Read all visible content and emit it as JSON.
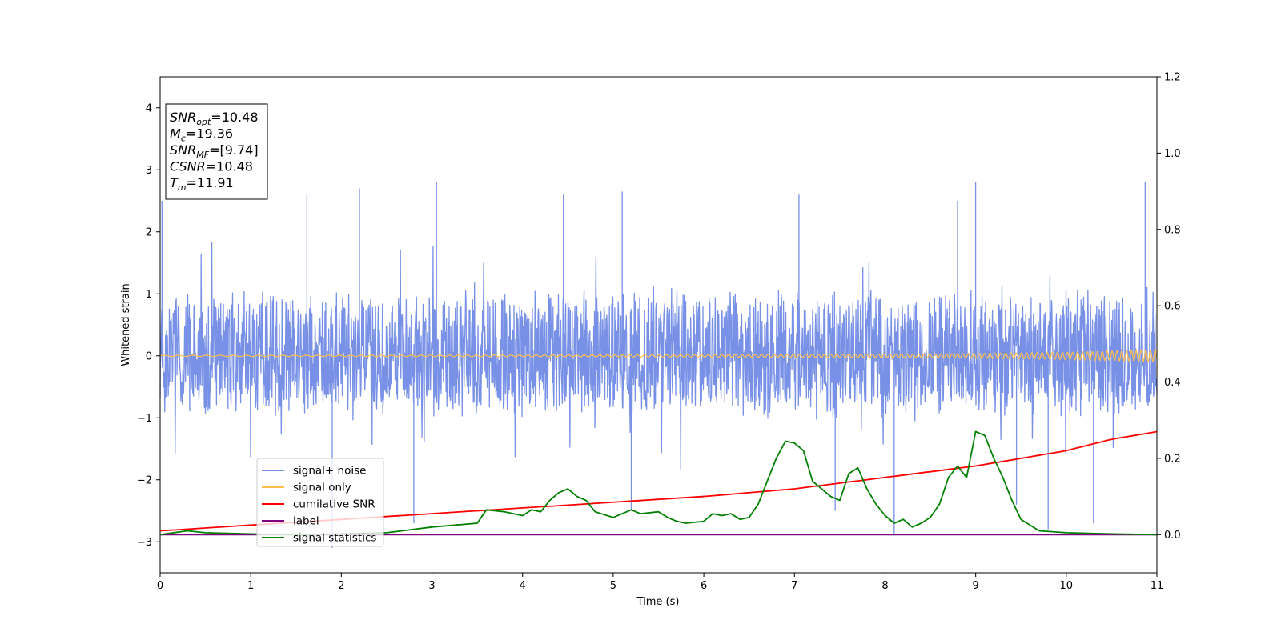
{
  "chart_data": {
    "type": "line",
    "xlabel": "Time (s)",
    "ylabel": "Whitened strain",
    "xlim": [
      0,
      11
    ],
    "ylim": [
      -3.5,
      4.5
    ],
    "y2lim": [
      -0.1,
      1.2
    ],
    "x_ticks": [
      "0",
      "1",
      "2",
      "3",
      "4",
      "5",
      "6",
      "7",
      "8",
      "9",
      "10",
      "11"
    ],
    "y_ticks": [
      "−3",
      "−2",
      "−1",
      "0",
      "1",
      "2",
      "3",
      "4"
    ],
    "y2_ticks": [
      "0.0",
      "0.2",
      "0.4",
      "0.6",
      "0.8",
      "1.0",
      "1.2"
    ],
    "grid": false,
    "legend_position": "lower-left",
    "annotation": [
      {
        "base": "SNR",
        "sub": "opt",
        "value": "=10.48"
      },
      {
        "base": "M",
        "sub": "c",
        "value": "=19.36"
      },
      {
        "base": "SNR",
        "sub": "MF",
        "value": "=[9.74]"
      },
      {
        "base": "CSNR",
        "sub": "",
        "value": "=10.48"
      },
      {
        "base": "T",
        "sub": "m",
        "value": "=11.91"
      }
    ],
    "series": [
      {
        "name": "signal+ noise",
        "color": "#7891e6",
        "axis": "left",
        "noise_band": [
          -1.0,
          1.1
        ],
        "peaks_x": [
          0.02,
          1.62,
          2.2,
          3.05,
          4.45,
          5.1,
          7.05,
          8.8,
          9.0,
          10.87
        ],
        "peaks_y": [
          2.5,
          2.6,
          2.7,
          2.8,
          2.6,
          2.65,
          2.6,
          2.5,
          2.8,
          2.8
        ],
        "troughs_x": [
          1.9,
          2.8,
          5.2,
          7.45,
          8.1,
          9.45,
          9.8,
          10.3
        ],
        "troughs_y": [
          -3.1,
          -2.7,
          -2.5,
          -2.5,
          -2.9,
          -2.4,
          -2.8,
          -2.7
        ]
      },
      {
        "name": "signal only",
        "color": "#ffbf4f",
        "axis": "left",
        "x": [
          0,
          2,
          4,
          6,
          8,
          9,
          10,
          10.5,
          11
        ],
        "amplitude": [
          0.01,
          0.012,
          0.015,
          0.02,
          0.03,
          0.04,
          0.06,
          0.08,
          0.1
        ]
      },
      {
        "name": "cumilative SNR",
        "color": "#ff0000",
        "axis": "right",
        "x": [
          0,
          1,
          2,
          3,
          4,
          5,
          6,
          7,
          8,
          9,
          10,
          10.5,
          11
        ],
        "y": [
          0.01,
          0.025,
          0.04,
          0.055,
          0.07,
          0.085,
          0.1,
          0.12,
          0.15,
          0.18,
          0.22,
          0.25,
          0.27
        ]
      },
      {
        "name": "label",
        "color": "#800080",
        "axis": "right",
        "x": [
          0,
          11
        ],
        "y": [
          0.0,
          0.0
        ]
      },
      {
        "name": "signal statistics",
        "color": "#008000",
        "axis": "right",
        "x": [
          0,
          0.3,
          0.5,
          1.0,
          1.5,
          2.0,
          2.5,
          3.0,
          3.5,
          3.6,
          3.8,
          4.0,
          4.1,
          4.2,
          4.3,
          4.4,
          4.5,
          4.6,
          4.7,
          4.8,
          5.0,
          5.2,
          5.3,
          5.5,
          5.6,
          5.7,
          5.8,
          6.0,
          6.1,
          6.2,
          6.3,
          6.4,
          6.5,
          6.6,
          6.7,
          6.8,
          6.9,
          7.0,
          7.1,
          7.2,
          7.4,
          7.5,
          7.6,
          7.7,
          7.8,
          7.9,
          8.0,
          8.1,
          8.2,
          8.3,
          8.4,
          8.5,
          8.6,
          8.7,
          8.8,
          8.9,
          9.0,
          9.1,
          9.2,
          9.3,
          9.4,
          9.5,
          9.7,
          10.0,
          10.5,
          11.0
        ],
        "y": [
          0.0,
          0.01,
          0.005,
          0.002,
          0.0,
          0.002,
          0.005,
          0.02,
          0.03,
          0.065,
          0.06,
          0.05,
          0.065,
          0.06,
          0.09,
          0.11,
          0.12,
          0.1,
          0.09,
          0.06,
          0.045,
          0.065,
          0.055,
          0.06,
          0.045,
          0.035,
          0.03,
          0.035,
          0.055,
          0.05,
          0.055,
          0.04,
          0.045,
          0.08,
          0.14,
          0.2,
          0.245,
          0.24,
          0.22,
          0.14,
          0.1,
          0.09,
          0.16,
          0.175,
          0.12,
          0.08,
          0.05,
          0.03,
          0.04,
          0.02,
          0.03,
          0.045,
          0.08,
          0.15,
          0.18,
          0.15,
          0.27,
          0.26,
          0.2,
          0.15,
          0.09,
          0.04,
          0.01,
          0.005,
          0.002,
          0.0
        ]
      }
    ]
  }
}
